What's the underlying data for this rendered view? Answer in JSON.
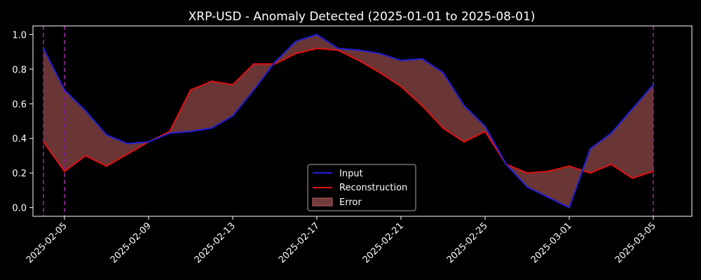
{
  "chart_data": {
    "type": "line",
    "title": "XRP-USD - Anomaly Detected (2025-01-01 to 2025-08-01)",
    "xlabel": "",
    "ylabel": "",
    "x_dates": [
      "2025-02-04",
      "2025-02-05",
      "2025-02-06",
      "2025-02-07",
      "2025-02-08",
      "2025-02-09",
      "2025-02-10",
      "2025-02-11",
      "2025-02-12",
      "2025-02-13",
      "2025-02-14",
      "2025-02-15",
      "2025-02-16",
      "2025-02-17",
      "2025-02-18",
      "2025-02-19",
      "2025-02-20",
      "2025-02-21",
      "2025-02-22",
      "2025-02-23",
      "2025-02-24",
      "2025-02-25",
      "2025-02-26",
      "2025-02-27",
      "2025-02-28",
      "2025-03-01",
      "2025-03-02",
      "2025-03-03",
      "2025-03-04",
      "2025-03-05"
    ],
    "xlim": [
      "2025-02-03T12:00",
      "2025-03-06T20:00"
    ],
    "ylim": [
      -0.05,
      1.05
    ],
    "x_tick_labels": [
      "2025-02-05",
      "2025-02-09",
      "2025-02-13",
      "2025-02-17",
      "2025-02-21",
      "2025-02-25",
      "2025-03-01",
      "2025-03-05"
    ],
    "y_tick_labels": [
      "0.0",
      "0.2",
      "0.4",
      "0.6",
      "0.8",
      "1.0"
    ],
    "y_ticks": [
      0.0,
      0.2,
      0.4,
      0.6,
      0.8,
      1.0
    ],
    "series": [
      {
        "name": "Input",
        "color": "#1f1fd6",
        "values": [
          0.92,
          0.68,
          0.56,
          0.42,
          0.37,
          0.38,
          0.43,
          0.44,
          0.46,
          0.53,
          0.68,
          0.84,
          0.96,
          1.0,
          0.92,
          0.91,
          0.89,
          0.85,
          0.86,
          0.78,
          0.59,
          0.47,
          0.25,
          0.12,
          0.06,
          0.0,
          0.34,
          0.43,
          0.57,
          0.71
        ]
      },
      {
        "name": "Reconstruction",
        "color": "#e01010",
        "values": [
          0.38,
          0.21,
          0.3,
          0.24,
          0.31,
          0.38,
          0.44,
          0.68,
          0.73,
          0.71,
          0.83,
          0.83,
          0.89,
          0.92,
          0.91,
          0.85,
          0.78,
          0.7,
          0.59,
          0.46,
          0.38,
          0.44,
          0.25,
          0.2,
          0.21,
          0.24,
          0.2,
          0.25,
          0.17,
          0.21
        ]
      }
    ],
    "error_fill": {
      "name": "Error",
      "color": "#c06060"
    },
    "anomaly_markers": [
      "2025-02-04",
      "2025-02-05",
      "2025-03-05"
    ],
    "anomaly_color": "#7a1f7a",
    "grid": false,
    "legend_position": "lower-center",
    "background": "#000000"
  }
}
